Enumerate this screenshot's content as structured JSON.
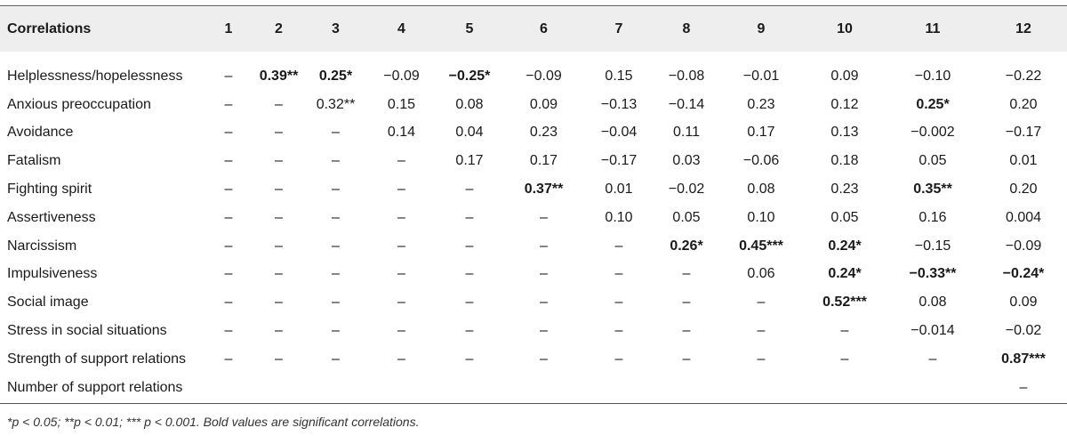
{
  "table": {
    "corner_label": "Correlations",
    "columns": [
      "1",
      "2",
      "3",
      "4",
      "5",
      "6",
      "7",
      "8",
      "9",
      "10",
      "11",
      "12"
    ],
    "rows": [
      {
        "label": "Helplessness/hopelessness",
        "cells": [
          {
            "v": "–"
          },
          {
            "v": "0.39**",
            "sig": true
          },
          {
            "v": "0.25*",
            "sig": true
          },
          {
            "v": "−0.09"
          },
          {
            "v": "−0.25*",
            "sig": true
          },
          {
            "v": "−0.09"
          },
          {
            "v": "0.15"
          },
          {
            "v": "−0.08"
          },
          {
            "v": "−0.01"
          },
          {
            "v": "0.09"
          },
          {
            "v": "−0.10"
          },
          {
            "v": "−0.22"
          }
        ]
      },
      {
        "label": "Anxious preoccupation",
        "cells": [
          {
            "v": "–"
          },
          {
            "v": "–"
          },
          {
            "v": "0.32**"
          },
          {
            "v": "0.15"
          },
          {
            "v": "0.08"
          },
          {
            "v": "0.09"
          },
          {
            "v": "−0.13"
          },
          {
            "v": "−0.14"
          },
          {
            "v": "0.23"
          },
          {
            "v": "0.12"
          },
          {
            "v": "0.25*",
            "sig": true
          },
          {
            "v": "0.20"
          }
        ]
      },
      {
        "label": "Avoidance",
        "cells": [
          {
            "v": "–"
          },
          {
            "v": "–"
          },
          {
            "v": "–"
          },
          {
            "v": "0.14"
          },
          {
            "v": "0.04"
          },
          {
            "v": "0.23"
          },
          {
            "v": "−0.04"
          },
          {
            "v": "0.11"
          },
          {
            "v": "0.17"
          },
          {
            "v": "0.13"
          },
          {
            "v": "−0.002"
          },
          {
            "v": "−0.17"
          }
        ]
      },
      {
        "label": "Fatalism",
        "cells": [
          {
            "v": "–"
          },
          {
            "v": "–"
          },
          {
            "v": "–"
          },
          {
            "v": "–"
          },
          {
            "v": "0.17"
          },
          {
            "v": "0.17"
          },
          {
            "v": "−0.17"
          },
          {
            "v": "0.03"
          },
          {
            "v": "−0.06"
          },
          {
            "v": "0.18"
          },
          {
            "v": "0.05"
          },
          {
            "v": "0.01"
          }
        ]
      },
      {
        "label": "Fighting spirit",
        "cells": [
          {
            "v": "–"
          },
          {
            "v": "–"
          },
          {
            "v": "–"
          },
          {
            "v": "–"
          },
          {
            "v": "–"
          },
          {
            "v": "0.37**",
            "sig": true
          },
          {
            "v": "0.01"
          },
          {
            "v": "−0.02"
          },
          {
            "v": "0.08"
          },
          {
            "v": "0.23"
          },
          {
            "v": "0.35**",
            "sig": true
          },
          {
            "v": "0.20"
          }
        ]
      },
      {
        "label": "Assertiveness",
        "cells": [
          {
            "v": "–"
          },
          {
            "v": "–"
          },
          {
            "v": "–"
          },
          {
            "v": "–"
          },
          {
            "v": "–"
          },
          {
            "v": "–"
          },
          {
            "v": "0.10"
          },
          {
            "v": "0.05"
          },
          {
            "v": "0.10"
          },
          {
            "v": "0.05"
          },
          {
            "v": "0.16"
          },
          {
            "v": "0.004"
          }
        ]
      },
      {
        "label": "Narcissism",
        "cells": [
          {
            "v": "–"
          },
          {
            "v": "–"
          },
          {
            "v": "–"
          },
          {
            "v": "–"
          },
          {
            "v": "–"
          },
          {
            "v": "–"
          },
          {
            "v": "–"
          },
          {
            "v": "0.26*",
            "sig": true
          },
          {
            "v": "0.45***",
            "sig": true
          },
          {
            "v": "0.24*",
            "sig": true
          },
          {
            "v": "−0.15"
          },
          {
            "v": "−0.09"
          }
        ]
      },
      {
        "label": "Impulsiveness",
        "cells": [
          {
            "v": "–"
          },
          {
            "v": "–"
          },
          {
            "v": "–"
          },
          {
            "v": "–"
          },
          {
            "v": "–"
          },
          {
            "v": "–"
          },
          {
            "v": "–"
          },
          {
            "v": "–"
          },
          {
            "v": "0.06"
          },
          {
            "v": "0.24*",
            "sig": true
          },
          {
            "v": "−0.33**",
            "sig": true
          },
          {
            "v": "−0.24*",
            "sig": true
          }
        ]
      },
      {
        "label": "Social image",
        "cells": [
          {
            "v": "–"
          },
          {
            "v": "–"
          },
          {
            "v": "–"
          },
          {
            "v": "–"
          },
          {
            "v": "–"
          },
          {
            "v": "–"
          },
          {
            "v": "–"
          },
          {
            "v": "–"
          },
          {
            "v": "–"
          },
          {
            "v": "0.52***",
            "sig": true
          },
          {
            "v": "0.08"
          },
          {
            "v": "0.09"
          }
        ]
      },
      {
        "label": "Stress in social situations",
        "cells": [
          {
            "v": "–"
          },
          {
            "v": "–"
          },
          {
            "v": "–"
          },
          {
            "v": "–"
          },
          {
            "v": "–"
          },
          {
            "v": "–"
          },
          {
            "v": "–"
          },
          {
            "v": "–"
          },
          {
            "v": "–"
          },
          {
            "v": "–"
          },
          {
            "v": "−0.014"
          },
          {
            "v": "−0.02"
          }
        ]
      },
      {
        "label": "Strength of support relations",
        "cells": [
          {
            "v": "–"
          },
          {
            "v": "–"
          },
          {
            "v": "–"
          },
          {
            "v": "–"
          },
          {
            "v": "–"
          },
          {
            "v": "–"
          },
          {
            "v": "–"
          },
          {
            "v": "–"
          },
          {
            "v": "–"
          },
          {
            "v": "–"
          },
          {
            "v": "–"
          },
          {
            "v": "0.87***",
            "sig": true
          }
        ]
      },
      {
        "label": "Number of support relations",
        "cells": [
          {
            "v": ""
          },
          {
            "v": ""
          },
          {
            "v": ""
          },
          {
            "v": ""
          },
          {
            "v": ""
          },
          {
            "v": ""
          },
          {
            "v": ""
          },
          {
            "v": ""
          },
          {
            "v": ""
          },
          {
            "v": ""
          },
          {
            "v": ""
          },
          {
            "v": "–"
          }
        ]
      }
    ]
  },
  "footnote": "*p < 0.05; **p < 0.01; *** p < 0.001. Bold values are significant correlations."
}
